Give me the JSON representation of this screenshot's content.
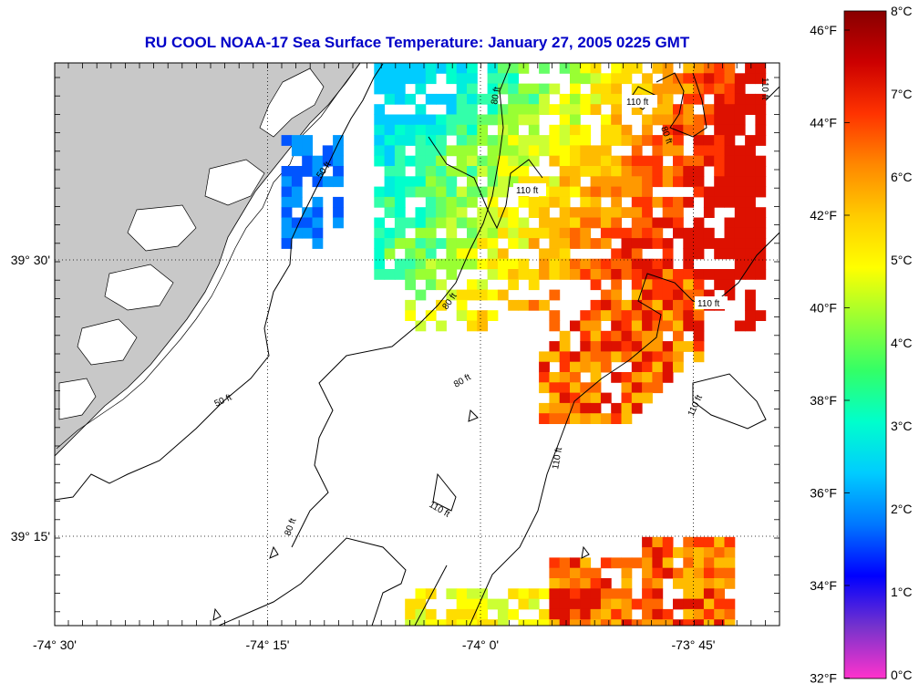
{
  "title": "RU COOL  NOAA-17  Sea Surface Temperature:  January 27, 2005 0225 GMT",
  "lon_ticks": [
    {
      "lon": -74.5,
      "label": "-74° 30'",
      "grid": false
    },
    {
      "lon": -74.25,
      "label": "-74° 15'",
      "grid": true
    },
    {
      "lon": -74.0,
      "label": "-74° 0'",
      "grid": true
    },
    {
      "lon": -73.75,
      "label": "-73° 45'",
      "grid": true
    }
  ],
  "lat_ticks": [
    {
      "lat": 39.5,
      "label": "39° 30'"
    },
    {
      "lat": 39.25,
      "label": "39° 15'"
    }
  ],
  "colorbar": {
    "f_labels": [
      "46°F",
      "44°F",
      "42°F",
      "40°F",
      "38°F",
      "36°F",
      "34°F",
      "32°F"
    ],
    "c_labels": [
      "8°C",
      "7°C",
      "6°C",
      "5°C",
      "4°C",
      "3°C",
      "2°C",
      "1°C",
      "0°C"
    ],
    "stops": [
      "#ff33cc",
      "#7733cc",
      "#0000ff",
      "#0077ff",
      "#00ccff",
      "#00ffcc",
      "#33ff66",
      "#99ff33",
      "#ffff00",
      "#ffcc00",
      "#ff8800",
      "#ff3300",
      "#cc0000",
      "#880000"
    ]
  },
  "contour_labels": [
    "110 ft",
    "110 ft",
    "110 ft",
    "110 ft",
    "110 ft",
    "110 ft",
    "110 ft",
    "80 ft",
    "80 ft",
    "80 ft",
    "80 ft",
    "80 ft",
    "50 ft",
    "50 ft"
  ],
  "colors": {
    "land": "#c8c8c8",
    "title": "#0000c8"
  }
}
